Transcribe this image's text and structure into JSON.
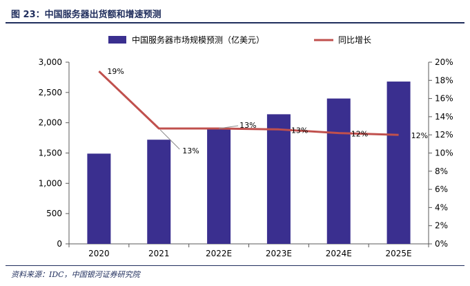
{
  "header": {
    "title": "图 23：中国服务器出货额和增速预测"
  },
  "footer": {
    "source": "资料来源：IDC，中国银河证券研究院"
  },
  "colors": {
    "bar": "#3a2f8f",
    "line": "#c0504d",
    "text": "#000000",
    "axis": "#595959",
    "title": "#1f2d5c"
  },
  "chart_data": {
    "type": "bar",
    "title": "",
    "xlabel": "",
    "ylabel": "",
    "categories": [
      "2020",
      "2021",
      "2022E",
      "2023E",
      "2024E",
      "2025E"
    ],
    "ylim": [
      0,
      3000
    ],
    "y_ticks": [
      0,
      500,
      1000,
      1500,
      2000,
      2500,
      3000
    ],
    "y_tick_labels": [
      "0",
      "500",
      "1,000",
      "1,500",
      "2,000",
      "2,500",
      "3,000"
    ],
    "y2lim": [
      0,
      20
    ],
    "y2_ticks": [
      0,
      2,
      4,
      6,
      8,
      10,
      12,
      14,
      16,
      18,
      20
    ],
    "y2_tick_labels": [
      "0%",
      "2%",
      "4%",
      "6%",
      "8%",
      "10%",
      "12%",
      "14%",
      "16%",
      "18%",
      "20%"
    ],
    "legend_position": "top",
    "grid": false,
    "series": [
      {
        "name": "中国服务器市场规模预测（亿美元）",
        "type": "bar",
        "axis": "left",
        "values": [
          1490,
          1720,
          1910,
          2140,
          2400,
          2680
        ]
      },
      {
        "name": "同比增长",
        "type": "line",
        "axis": "right",
        "values": [
          19,
          12.7,
          12.7,
          12.6,
          12.2,
          12.0
        ],
        "data_labels": [
          "19%",
          "13%",
          "13%",
          "13%",
          "12%",
          "12%"
        ]
      }
    ]
  }
}
